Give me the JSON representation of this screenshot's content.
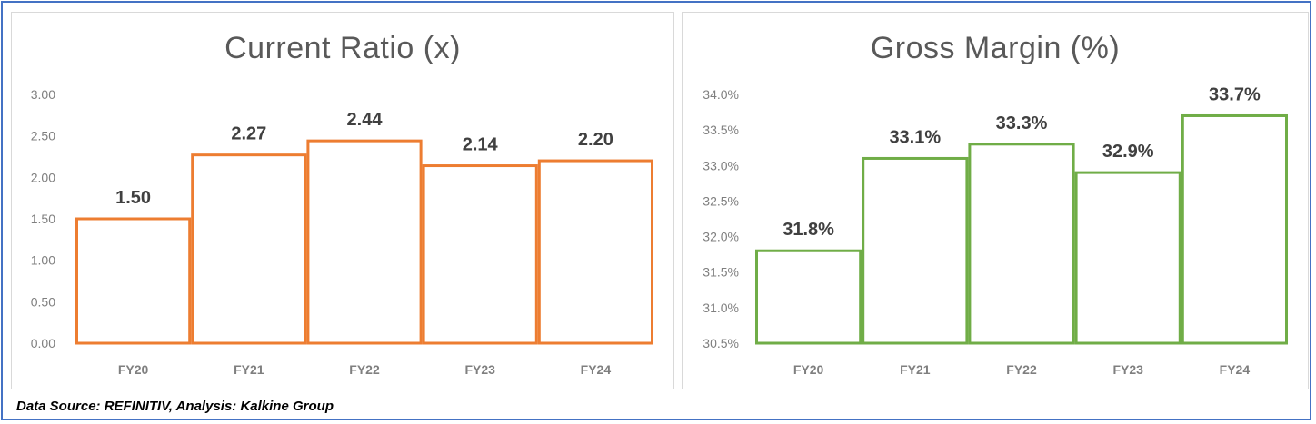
{
  "footer": "Data Source: REFINITIV, Analysis: Kalkine Group",
  "chart_data": [
    {
      "type": "bar",
      "title": "Current Ratio (x)",
      "categories": [
        "FY20",
        "FY21",
        "FY22",
        "FY23",
        "FY24"
      ],
      "values": [
        1.5,
        2.27,
        2.44,
        2.14,
        2.2
      ],
      "data_labels": [
        "1.50",
        "2.27",
        "2.44",
        "2.14",
        "2.20"
      ],
      "ylim": [
        0,
        3
      ],
      "yticks": [
        0,
        0.5,
        1,
        1.5,
        2,
        2.5,
        3
      ],
      "ytick_labels": [
        "0.00",
        "0.50",
        "1.00",
        "1.50",
        "2.00",
        "2.50",
        "3.00"
      ],
      "bar_style": "outline",
      "color": "#ed7d31",
      "grid": false,
      "legend": "none"
    },
    {
      "type": "bar",
      "title": "Gross Margin (%)",
      "categories": [
        "FY20",
        "FY21",
        "FY22",
        "FY23",
        "FY24"
      ],
      "values": [
        31.8,
        33.1,
        33.3,
        32.9,
        33.7
      ],
      "data_labels": [
        "31.8%",
        "33.1%",
        "33.3%",
        "32.9%",
        "33.7%"
      ],
      "ylim": [
        30.5,
        34.0
      ],
      "yticks": [
        30.5,
        31.0,
        31.5,
        32.0,
        32.5,
        33.0,
        33.5,
        34.0
      ],
      "ytick_labels": [
        "30.5%",
        "31.0%",
        "31.5%",
        "32.0%",
        "32.5%",
        "33.0%",
        "33.5%",
        "34.0%"
      ],
      "bar_style": "outline",
      "color": "#70ad47",
      "grid": false,
      "legend": "none"
    }
  ]
}
